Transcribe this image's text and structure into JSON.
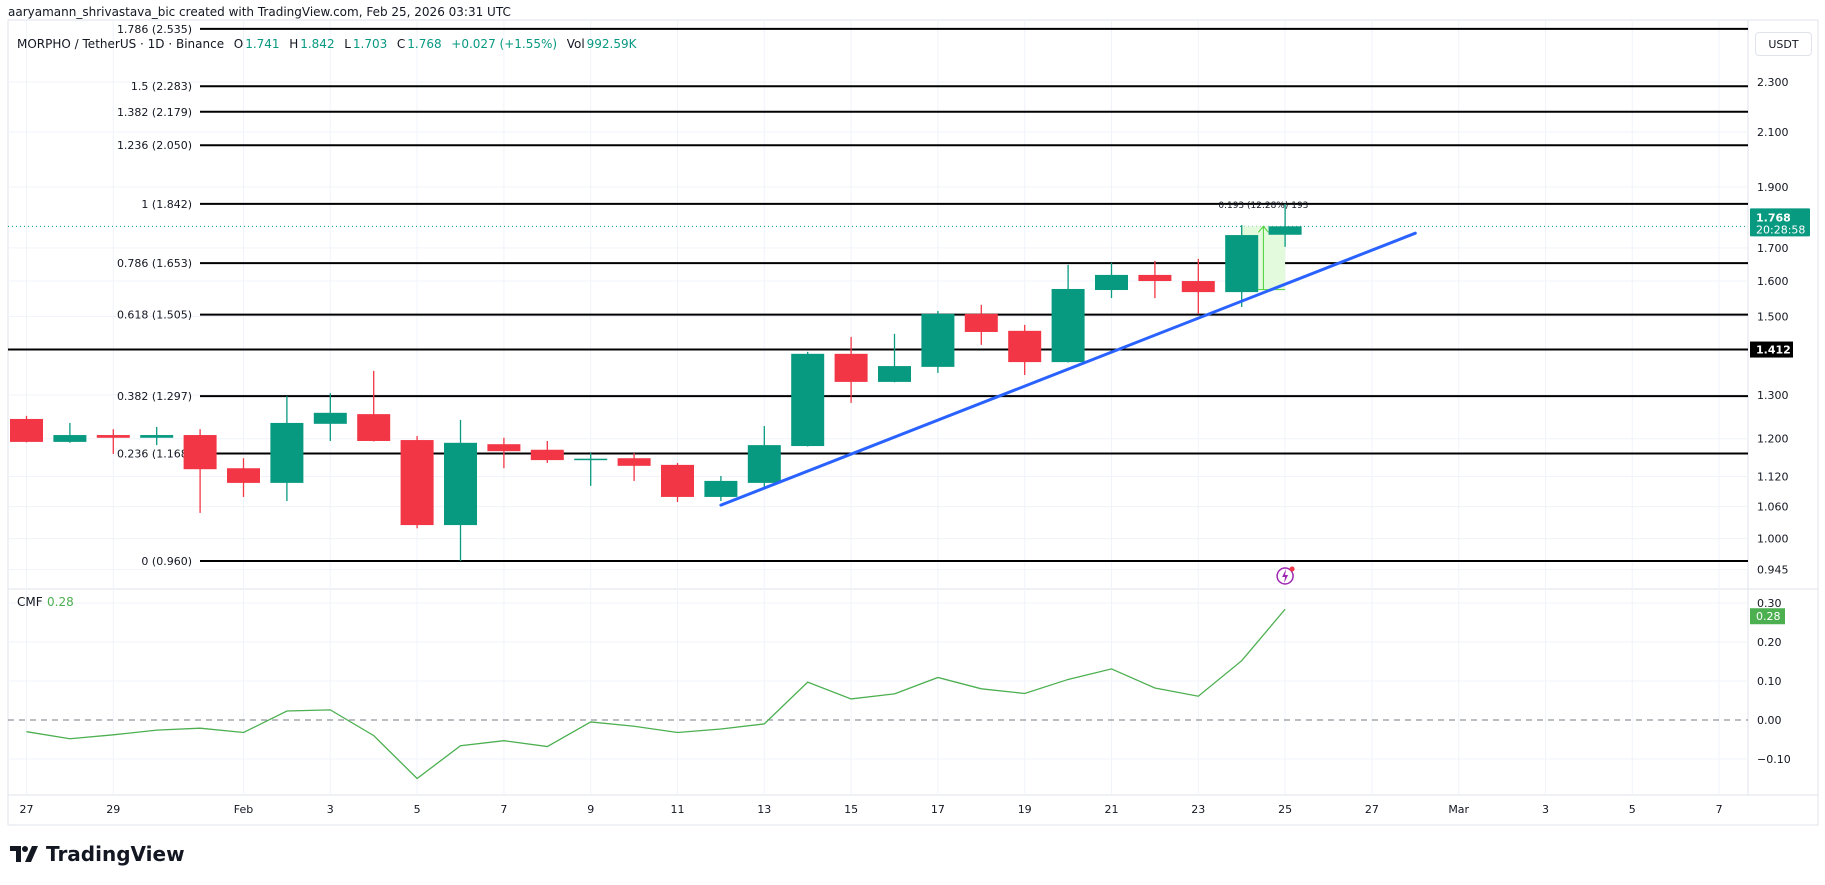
{
  "credit": "aaryamann_shrivastava_bic created with TradingView.com, Feb 25, 2026 03:31 UTC",
  "legend": {
    "symbol": "MORPHO / TetherUS · 1D · Binance",
    "o_label": "O",
    "o": "1.741",
    "h_label": "H",
    "h": "1.842",
    "l_label": "L",
    "l": "1.703",
    "c_label": "C",
    "c": "1.768",
    "change": "+0.027 (+1.55%)",
    "vol_label": "Vol",
    "vol": "992.59K"
  },
  "currency_button": "USDT",
  "brand": "TradingView",
  "colors": {
    "up": "#089981",
    "down": "#f23645",
    "cmf": "#4caf50",
    "trendline": "#2962ff",
    "fib": "#000000",
    "measure_fill": "#e3fbdc",
    "measure_stroke": "#4cd137",
    "alert": "#9c27b0"
  },
  "chart_data": [
    {
      "type": "candlestick",
      "title": "MORPHO / TetherUS · 1D · Binance",
      "y_scale": "log",
      "ylim": [
        0.93,
        2.56
      ],
      "y_ticks": [
        "2.300",
        "2.100",
        "1.900",
        "1.700",
        "1.600",
        "1.500",
        "1.300",
        "1.200",
        "1.120",
        "1.060",
        "1.000",
        "0.945"
      ],
      "x_ticks": [
        {
          "label": "27",
          "date": "2026-01-27"
        },
        {
          "label": "29",
          "date": "2026-01-29"
        },
        {
          "label": "Feb",
          "date": "2026-02-01"
        },
        {
          "label": "3",
          "date": "2026-02-03"
        },
        {
          "label": "5",
          "date": "2026-02-05"
        },
        {
          "label": "7",
          "date": "2026-02-07"
        },
        {
          "label": "9",
          "date": "2026-02-09"
        },
        {
          "label": "11",
          "date": "2026-02-11"
        },
        {
          "label": "13",
          "date": "2026-02-13"
        },
        {
          "label": "15",
          "date": "2026-02-15"
        },
        {
          "label": "17",
          "date": "2026-02-17"
        },
        {
          "label": "19",
          "date": "2026-02-19"
        },
        {
          "label": "21",
          "date": "2026-02-21"
        },
        {
          "label": "23",
          "date": "2026-02-23"
        },
        {
          "label": "25",
          "date": "2026-02-25"
        },
        {
          "label": "27",
          "date": "2026-02-27"
        },
        {
          "label": "Mar",
          "date": "2026-03-01"
        },
        {
          "label": "3",
          "date": "2026-03-03"
        },
        {
          "label": "5",
          "date": "2026-03-05"
        },
        {
          "label": "7",
          "date": "2026-03-07"
        }
      ],
      "grid": true,
      "candles": [
        {
          "date": "2026-01-27",
          "o": 1.244,
          "h": 1.251,
          "l": 1.192,
          "c": 1.193
        },
        {
          "date": "2026-01-28",
          "o": 1.193,
          "h": 1.235,
          "l": 1.191,
          "c": 1.208
        },
        {
          "date": "2026-01-29",
          "o": 1.208,
          "h": 1.221,
          "l": 1.167,
          "c": 1.202
        },
        {
          "date": "2026-01-30",
          "o": 1.202,
          "h": 1.226,
          "l": 1.186,
          "c": 1.208
        },
        {
          "date": "2026-01-31",
          "o": 1.208,
          "h": 1.221,
          "l": 1.048,
          "c": 1.135
        },
        {
          "date": "2026-02-01",
          "o": 1.137,
          "h": 1.158,
          "l": 1.079,
          "c": 1.107
        },
        {
          "date": "2026-02-02",
          "o": 1.107,
          "h": 1.297,
          "l": 1.071,
          "c": 1.235
        },
        {
          "date": "2026-02-03",
          "o": 1.233,
          "h": 1.304,
          "l": 1.195,
          "c": 1.258
        },
        {
          "date": "2026-02-04",
          "o": 1.255,
          "h": 1.358,
          "l": 1.194,
          "c": 1.195
        },
        {
          "date": "2026-02-05",
          "o": 1.197,
          "h": 1.206,
          "l": 1.019,
          "c": 1.025
        },
        {
          "date": "2026-02-06",
          "o": 1.025,
          "h": 1.242,
          "l": 0.96,
          "c": 1.191
        },
        {
          "date": "2026-02-07",
          "o": 1.188,
          "h": 1.202,
          "l": 1.137,
          "c": 1.173
        },
        {
          "date": "2026-02-08",
          "o": 1.176,
          "h": 1.195,
          "l": 1.148,
          "c": 1.154
        },
        {
          "date": "2026-02-09",
          "o": 1.156,
          "h": 1.169,
          "l": 1.101,
          "c": 1.157
        },
        {
          "date": "2026-02-10",
          "o": 1.158,
          "h": 1.169,
          "l": 1.111,
          "c": 1.142
        },
        {
          "date": "2026-02-11",
          "o": 1.144,
          "h": 1.148,
          "l": 1.069,
          "c": 1.079
        },
        {
          "date": "2026-02-12",
          "o": 1.079,
          "h": 1.121,
          "l": 1.071,
          "c": 1.111
        },
        {
          "date": "2026-02-13",
          "o": 1.107,
          "h": 1.228,
          "l": 1.097,
          "c": 1.186
        },
        {
          "date": "2026-02-14",
          "o": 1.184,
          "h": 1.406,
          "l": 1.183,
          "c": 1.401
        },
        {
          "date": "2026-02-15",
          "o": 1.401,
          "h": 1.445,
          "l": 1.281,
          "c": 1.331
        },
        {
          "date": "2026-02-16",
          "o": 1.331,
          "h": 1.453,
          "l": 1.33,
          "c": 1.37
        },
        {
          "date": "2026-02-17",
          "o": 1.368,
          "h": 1.515,
          "l": 1.353,
          "c": 1.507
        },
        {
          "date": "2026-02-18",
          "o": 1.507,
          "h": 1.532,
          "l": 1.424,
          "c": 1.458
        },
        {
          "date": "2026-02-19",
          "o": 1.461,
          "h": 1.477,
          "l": 1.348,
          "c": 1.38
        },
        {
          "date": "2026-02-20",
          "o": 1.38,
          "h": 1.648,
          "l": 1.379,
          "c": 1.577
        },
        {
          "date": "2026-02-21",
          "o": 1.574,
          "h": 1.654,
          "l": 1.551,
          "c": 1.618
        },
        {
          "date": "2026-02-22",
          "o": 1.618,
          "h": 1.66,
          "l": 1.551,
          "c": 1.6
        },
        {
          "date": "2026-02-23",
          "o": 1.6,
          "h": 1.666,
          "l": 1.507,
          "c": 1.568
        },
        {
          "date": "2026-02-24",
          "o": 1.568,
          "h": 1.772,
          "l": 1.526,
          "c": 1.74
        },
        {
          "date": "2026-02-25",
          "o": 1.741,
          "h": 1.842,
          "l": 1.703,
          "c": 1.768
        }
      ],
      "fib_levels": [
        {
          "label": "1.786 (2.535)",
          "price": 2.535
        },
        {
          "label": "1.5 (2.283)",
          "price": 2.283
        },
        {
          "label": "1.382 (2.179)",
          "price": 2.179
        },
        {
          "label": "1.236 (2.050)",
          "price": 2.05
        },
        {
          "label": "1 (1.842)",
          "price": 1.842
        },
        {
          "label": "0.786 (1.653)",
          "price": 1.653
        },
        {
          "label": "0.618 (1.505)",
          "price": 1.505
        },
        {
          "label": "0.382 (1.297)",
          "price": 1.297
        },
        {
          "label": "0.236 (1.168)",
          "price": 1.168
        },
        {
          "label": "0 (0.960)",
          "price": 0.96
        }
      ],
      "horizontal_line": {
        "price": 1.412,
        "label": "1.412"
      },
      "last_price": {
        "price": 1.768,
        "label": "1.768",
        "countdown": "20:28:58"
      },
      "trendline": {
        "start": {
          "date": "2026-02-12",
          "price": 1.063
        },
        "end": {
          "date": "2026-02-28",
          "price": 1.746
        }
      },
      "measure": {
        "start_date": "2026-02-24",
        "end_date": "2026-02-25",
        "from_price": 1.575,
        "to_price": 1.768,
        "label": "0.193 (12.28%) 193"
      }
    },
    {
      "type": "line",
      "title": "CMF",
      "current_label": "0.28",
      "ylim": [
        -0.17,
        0.31
      ],
      "y_ticks": [
        "0.30",
        "0.20",
        "0.10",
        "0.00",
        "-0.10"
      ],
      "zero_line": "dashed",
      "series": [
        {
          "name": "CMF",
          "x": [
            "2026-01-27",
            "2026-01-28",
            "2026-01-29",
            "2026-01-30",
            "2026-01-31",
            "2026-02-01",
            "2026-02-02",
            "2026-02-03",
            "2026-02-04",
            "2026-02-05",
            "2026-02-06",
            "2026-02-07",
            "2026-02-08",
            "2026-02-09",
            "2026-02-10",
            "2026-02-11",
            "2026-02-12",
            "2026-02-13",
            "2026-02-14",
            "2026-02-15",
            "2026-02-16",
            "2026-02-17",
            "2026-02-18",
            "2026-02-19",
            "2026-02-20",
            "2026-02-21",
            "2026-02-22",
            "2026-02-23",
            "2026-02-24",
            "2026-02-25"
          ],
          "values": [
            -0.03,
            -0.048,
            -0.038,
            -0.026,
            -0.021,
            -0.032,
            0.023,
            0.026,
            -0.04,
            -0.15,
            -0.066,
            -0.053,
            -0.068,
            -0.005,
            -0.016,
            -0.032,
            -0.023,
            -0.01,
            0.097,
            0.054,
            0.067,
            0.109,
            0.08,
            0.068,
            0.104,
            0.131,
            0.082,
            0.061,
            0.152,
            0.284
          ]
        }
      ]
    }
  ]
}
